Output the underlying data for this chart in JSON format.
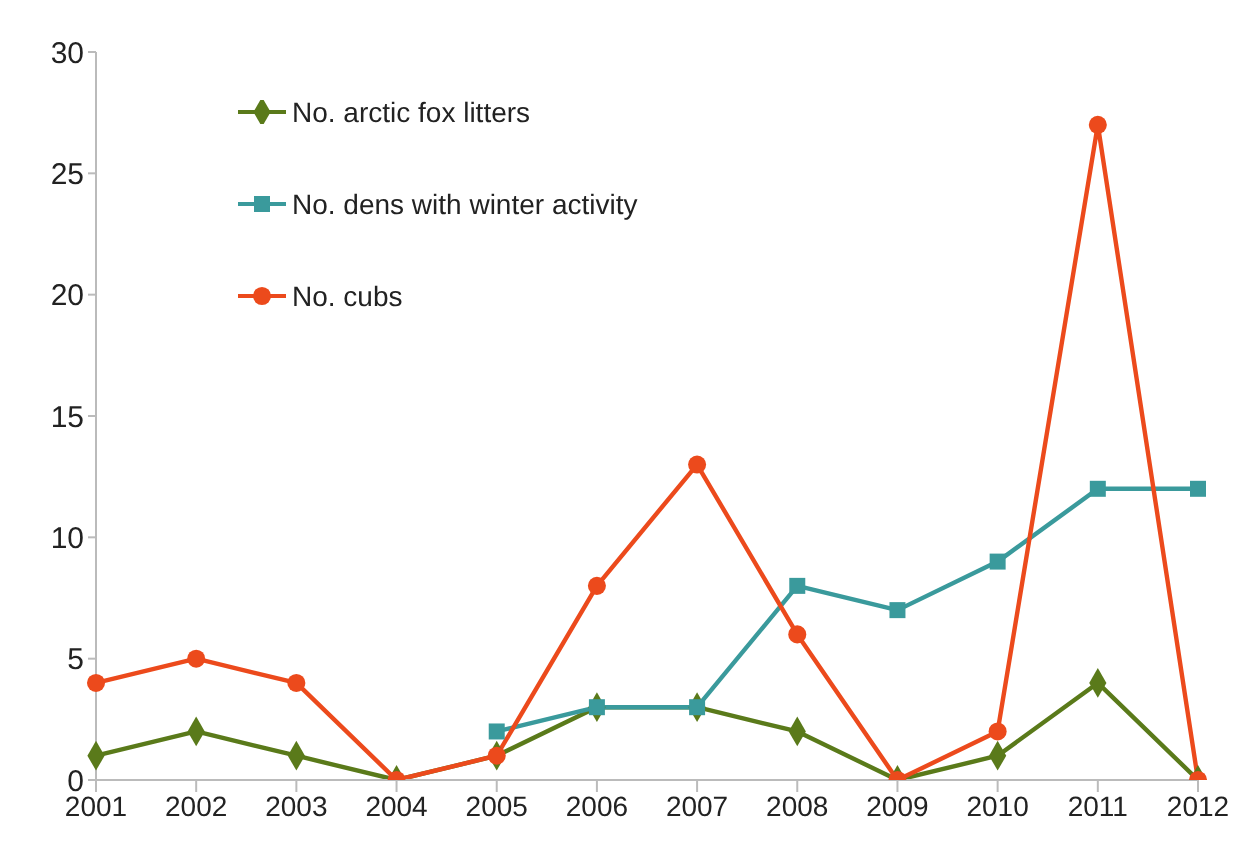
{
  "chart_data": {
    "type": "line",
    "categories": [
      "2001",
      "2002",
      "2003",
      "2004",
      "2005",
      "2006",
      "2007",
      "2008",
      "2009",
      "2010",
      "2011",
      "2012"
    ],
    "series": [
      {
        "name": "No. arctic fox litters",
        "color": "#5a7a1a",
        "marker": "diamond",
        "values": [
          1,
          2,
          1,
          0,
          1,
          3,
          3,
          2,
          0,
          1,
          4,
          0
        ]
      },
      {
        "name": "No. dens with winter activity",
        "color": "#3a9a9c",
        "marker": "square",
        "values": [
          null,
          null,
          null,
          null,
          2,
          3,
          3,
          8,
          7,
          9,
          12,
          12
        ]
      },
      {
        "name": "No. cubs",
        "color": "#ec4a1c",
        "marker": "circle",
        "values": [
          4,
          5,
          4,
          0,
          1,
          8,
          13,
          6,
          0,
          2,
          27,
          0
        ]
      }
    ],
    "ylim": [
      0,
      30
    ],
    "yticks": [
      0,
      5,
      10,
      15,
      20,
      25,
      30
    ],
    "grid": false,
    "legend": "top left",
    "line_style": "solid"
  }
}
